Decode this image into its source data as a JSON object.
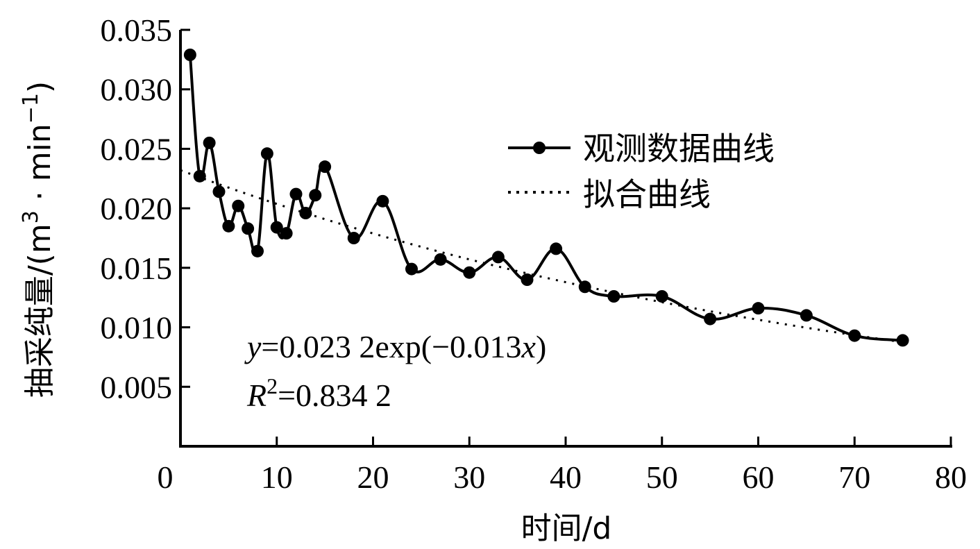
{
  "chart_data": {
    "type": "line",
    "title": "",
    "xlabel": "时间/d",
    "ylabel": "抽采纯量/(m³·min⁻¹)",
    "ylabel_parts": {
      "main": "抽采纯量/(m",
      "sup1": "3",
      "mid": " · min",
      "sup2": "−1",
      "end": ")"
    },
    "xlim": [
      0,
      80
    ],
    "ylim": [
      0,
      0.035
    ],
    "x_ticks": [
      0,
      10,
      20,
      30,
      40,
      50,
      60,
      70,
      80
    ],
    "x_tick_labels": [
      "0",
      "10",
      "20",
      "30",
      "40",
      "50",
      "60",
      "70",
      "80"
    ],
    "y_ticks": [
      0.005,
      0.01,
      0.015,
      0.02,
      0.025,
      0.03,
      0.035
    ],
    "y_tick_labels": [
      "0.005",
      "0.010",
      "0.015",
      "0.020",
      "0.025",
      "0.030",
      "0.035"
    ],
    "grid": false,
    "legend_position": "upper right",
    "series": [
      {
        "name": "观测数据曲线",
        "style": "solid line with circle markers",
        "color": "#000000",
        "x": [
          1,
          2,
          3,
          4,
          5,
          6,
          7,
          8,
          9,
          10,
          11,
          12,
          13,
          14,
          15,
          18,
          21,
          24,
          27,
          30,
          33,
          36,
          39,
          42,
          45,
          50,
          55,
          60,
          65,
          70,
          75
        ],
        "values": [
          0.0329,
          0.0227,
          0.0255,
          0.0214,
          0.0185,
          0.0202,
          0.0183,
          0.0164,
          0.0246,
          0.0184,
          0.0179,
          0.0212,
          0.0196,
          0.0211,
          0.0235,
          0.0175,
          0.0206,
          0.0149,
          0.0157,
          0.0146,
          0.0159,
          0.014,
          0.0166,
          0.0134,
          0.0126,
          0.0126,
          0.0107,
          0.0116,
          0.011,
          0.0093,
          0.0089
        ]
      },
      {
        "name": "拟合曲线",
        "style": "dotted line",
        "color": "#000000",
        "formula": {
          "a": 0.0232,
          "b": -0.013
        },
        "x_range": [
          0,
          75
        ]
      }
    ],
    "annotations": [
      {
        "text": "y=0.023 2exp(−0.013x)",
        "position": [
          0.015,
          0.0075
        ]
      },
      {
        "text": "R²=0.834 2",
        "position": [
          0.015,
          0.0045
        ]
      }
    ]
  },
  "legend": {
    "items": [
      {
        "label": "观测数据曲线",
        "style": "line-marker"
      },
      {
        "label": "拟合曲线",
        "style": "dotted"
      }
    ]
  },
  "equation": {
    "y_var": "y",
    "y_rest": "=0.023 2exp(−0.013",
    "x_var": "x",
    "close": ")",
    "r_var": "R",
    "r_sup": "2",
    "r_rest": "=0.834 2"
  },
  "axes": {
    "x_title": "时间/d"
  }
}
